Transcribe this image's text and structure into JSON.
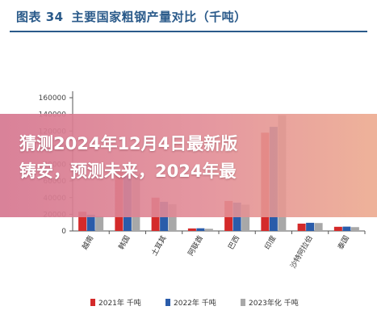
{
  "figure": {
    "label": "图表 34",
    "title": "主要国家粗钢产量对比（千吨）"
  },
  "banner": {
    "line1": "猜测2024年12月4日最新版",
    "line2": "铸安，预测未来，2024年最"
  },
  "colors": {
    "title": "#2a5a8a",
    "series": [
      "#d42a2a",
      "#2a5caa",
      "#a8a8a8"
    ]
  },
  "chart_data": {
    "type": "bar",
    "categories": [
      "越南",
      "韩国",
      "土耳其",
      "阿联酋",
      "巴西",
      "印度",
      "沙特阿拉伯",
      "泰国"
    ],
    "series": [
      {
        "name": "2021年 千吨",
        "values": [
          23000,
          70500,
          40000,
          3000,
          36000,
          118000,
          8800,
          5000
        ]
      },
      {
        "name": "2022年 千吨",
        "values": [
          19500,
          65800,
          35000,
          3200,
          34000,
          125000,
          9800,
          5200
        ]
      },
      {
        "name": "2023年化 千吨",
        "values": [
          17500,
          68500,
          32000,
          2600,
          31500,
          139000,
          9500,
          4600
        ]
      }
    ],
    "y_ticks": [
      "0",
      "20000",
      "40000",
      "60000",
      "80000",
      "100000",
      "120000",
      "140000",
      "160000"
    ],
    "ylim": [
      0,
      160000
    ],
    "xlabel": "",
    "ylabel": "",
    "grid": false,
    "legend_position": "bottom"
  }
}
